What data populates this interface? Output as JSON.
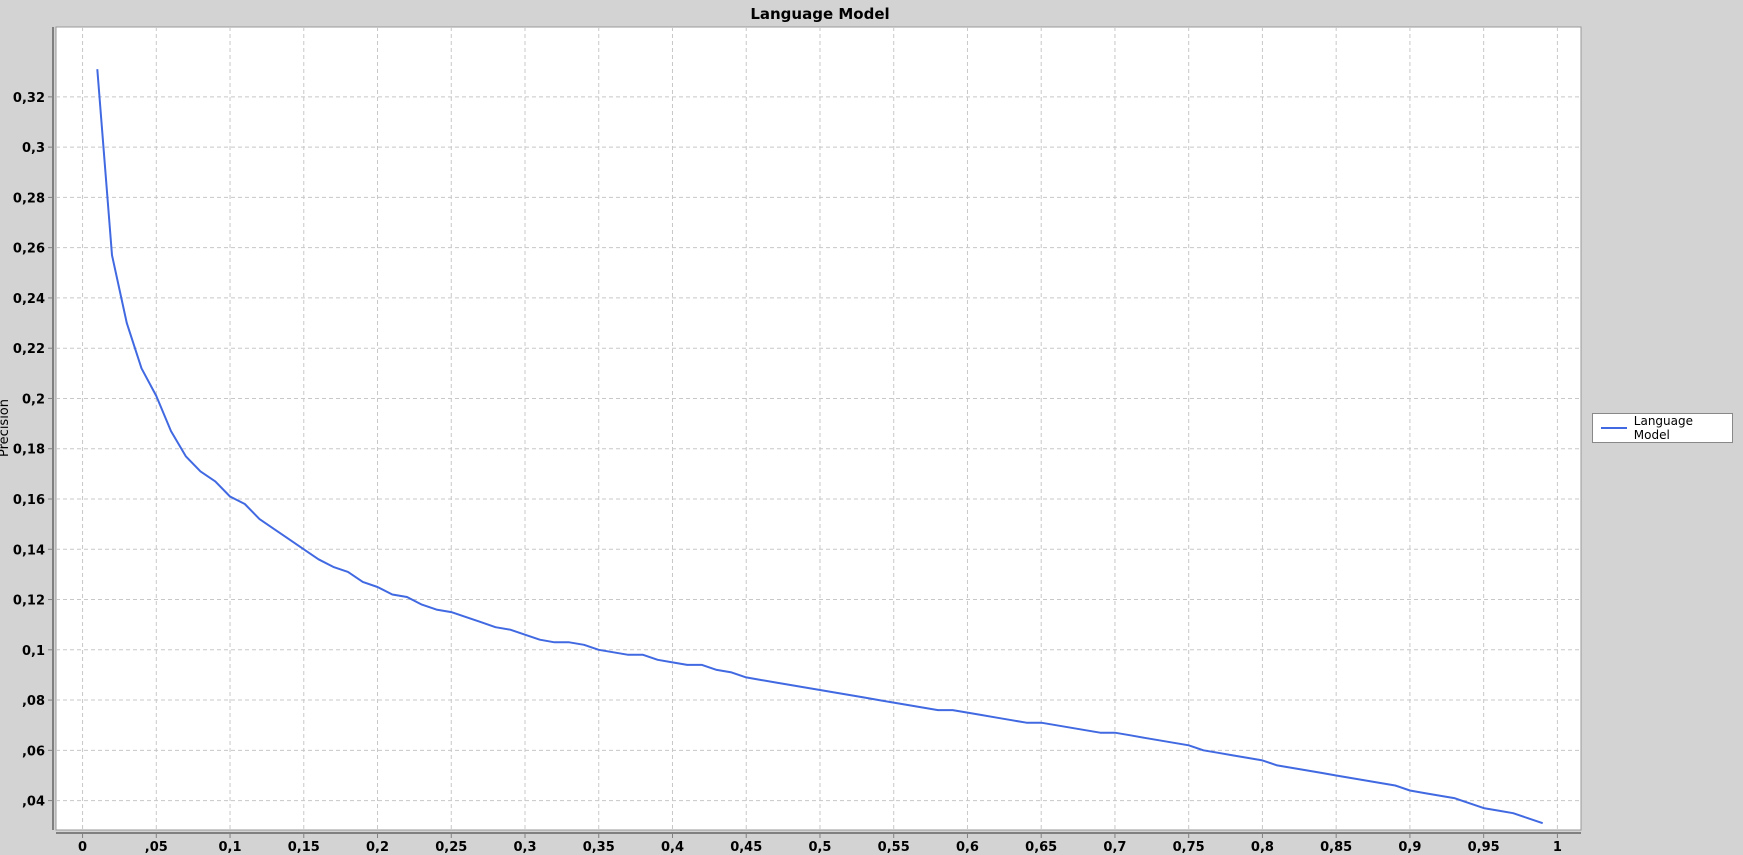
{
  "chart_data": {
    "type": "line",
    "title": "Language Model",
    "xlabel": "",
    "ylabel": "Precision",
    "xlim": [
      -0.018,
      1.016
    ],
    "ylim": [
      0.0283,
      0.3478
    ],
    "grid": true,
    "legend_position": "right",
    "x_ticks": [
      0,
      0.05,
      0.1,
      0.15,
      0.2,
      0.25,
      0.3,
      0.35,
      0.4,
      0.45,
      0.5,
      0.55,
      0.6,
      0.65,
      0.7,
      0.75,
      0.8,
      0.85,
      0.9,
      0.95,
      1
    ],
    "x_tick_labels": [
      "0",
      ",05",
      "0,1",
      "0,15",
      "0,2",
      "0,25",
      "0,3",
      "0,35",
      "0,4",
      "0,45",
      "0,5",
      "0,55",
      "0,6",
      "0,65",
      "0,7",
      "0,75",
      "0,8",
      "0,85",
      "0,9",
      "0,95",
      "1"
    ],
    "y_ticks": [
      0.04,
      0.06,
      0.08,
      0.1,
      0.12,
      0.14,
      0.16,
      0.18,
      0.2,
      0.22,
      0.24,
      0.26,
      0.28,
      0.3,
      0.32
    ],
    "y_tick_labels": [
      ",04",
      ",06",
      ",08",
      "0,1",
      "0,12",
      "0,14",
      "0,16",
      "0,18",
      "0,2",
      "0,22",
      "0,24",
      "0,26",
      "0,28",
      "0,3",
      "0,32"
    ],
    "series": [
      {
        "name": "Language Model",
        "color": "#4169e1",
        "x": [
          0.01,
          0.02,
          0.03,
          0.04,
          0.05,
          0.06,
          0.07,
          0.08,
          0.09,
          0.1,
          0.11,
          0.12,
          0.13,
          0.14,
          0.15,
          0.16,
          0.17,
          0.18,
          0.19,
          0.2,
          0.21,
          0.22,
          0.23,
          0.24,
          0.25,
          0.26,
          0.27,
          0.28,
          0.29,
          0.3,
          0.31,
          0.32,
          0.33,
          0.34,
          0.35,
          0.36,
          0.37,
          0.38,
          0.39,
          0.4,
          0.41,
          0.42,
          0.43,
          0.44,
          0.45,
          0.46,
          0.47,
          0.48,
          0.49,
          0.5,
          0.51,
          0.52,
          0.53,
          0.54,
          0.55,
          0.56,
          0.57,
          0.58,
          0.59,
          0.6,
          0.61,
          0.62,
          0.63,
          0.64,
          0.65,
          0.66,
          0.67,
          0.68,
          0.69,
          0.7,
          0.71,
          0.72,
          0.73,
          0.74,
          0.75,
          0.76,
          0.77,
          0.78,
          0.79,
          0.8,
          0.81,
          0.82,
          0.83,
          0.84,
          0.85,
          0.86,
          0.87,
          0.88,
          0.89,
          0.9,
          0.91,
          0.92,
          0.93,
          0.94,
          0.95,
          0.96,
          0.97,
          0.98,
          0.99
        ],
        "values": [
          0.331,
          0.257,
          0.23,
          0.212,
          0.201,
          0.187,
          0.177,
          0.171,
          0.167,
          0.161,
          0.158,
          0.152,
          0.148,
          0.144,
          0.14,
          0.136,
          0.133,
          0.131,
          0.127,
          0.125,
          0.122,
          0.121,
          0.118,
          0.116,
          0.115,
          0.113,
          0.111,
          0.109,
          0.108,
          0.106,
          0.104,
          0.103,
          0.103,
          0.102,
          0.1,
          0.099,
          0.098,
          0.098,
          0.096,
          0.095,
          0.094,
          0.094,
          0.092,
          0.091,
          0.089,
          0.088,
          0.087,
          0.086,
          0.085,
          0.084,
          0.083,
          0.082,
          0.081,
          0.08,
          0.079,
          0.078,
          0.077,
          0.076,
          0.076,
          0.075,
          0.074,
          0.073,
          0.072,
          0.071,
          0.071,
          0.07,
          0.069,
          0.068,
          0.067,
          0.067,
          0.066,
          0.065,
          0.064,
          0.063,
          0.062,
          0.06,
          0.059,
          0.058,
          0.057,
          0.056,
          0.054,
          0.053,
          0.052,
          0.051,
          0.05,
          0.049,
          0.048,
          0.047,
          0.046,
          0.044,
          0.043,
          0.042,
          0.041,
          0.039,
          0.037,
          0.036,
          0.035,
          0.033,
          0.031
        ]
      }
    ]
  }
}
